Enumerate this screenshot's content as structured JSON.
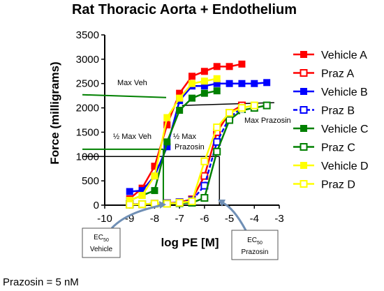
{
  "chart_data": {
    "type": "scatter",
    "title": "Rat Thoracic Aorta + Endothelium",
    "xlabel": "log PE [M]",
    "ylabel": "Force (milligrams)",
    "xlim": [
      -10,
      -3
    ],
    "ylim": [
      0,
      3500
    ],
    "xticks": [
      -10,
      -9,
      -8,
      -7,
      -6,
      -5,
      -4,
      -3
    ],
    "yticks": [
      0,
      500,
      1000,
      1500,
      2000,
      2500,
      3000,
      3500
    ],
    "legend_position": "right",
    "series": [
      {
        "name": "Vehicle A",
        "color": "#ff0000",
        "marker": "filled-square",
        "dash": "solid",
        "x": [
          -9,
          -8.5,
          -8,
          -7.5,
          -7,
          -6.5,
          -6,
          -5.5,
          -5,
          -4.5
        ],
        "y": [
          130,
          350,
          800,
          1650,
          2300,
          2650,
          2750,
          2850,
          2850,
          2900
        ]
      },
      {
        "name": "Praz A",
        "color": "#ff0000",
        "marker": "open-square",
        "dash": "solid",
        "x": [
          -9,
          -8.5,
          -8,
          -7.5,
          -7,
          -6.5,
          -6,
          -5.5,
          -5,
          -4.5
        ],
        "y": [
          20,
          20,
          30,
          40,
          60,
          120,
          600,
          1500,
          1900,
          2050
        ]
      },
      {
        "name": "Vehicle B",
        "color": "#0000ff",
        "marker": "filled-square",
        "dash": "solid",
        "x": [
          -9,
          -8.5,
          -8,
          -7.5,
          -7,
          -6.5,
          -6,
          -5.5,
          -5,
          -4.5,
          -4,
          -3.5
        ],
        "y": [
          280,
          300,
          600,
          1200,
          2150,
          2450,
          2450,
          2500,
          2500,
          2500,
          2500,
          2520
        ]
      },
      {
        "name": "Praz B",
        "color": "#0000ff",
        "marker": "open-square",
        "dash": "dashed",
        "x": [
          -9,
          -8.5,
          -8,
          -7.5,
          -7,
          -6.5,
          -6,
          -5.5,
          -5,
          -4.5
        ],
        "y": [
          20,
          20,
          30,
          40,
          60,
          100,
          400,
          1300,
          1800,
          2000
        ]
      },
      {
        "name": "Vehicle C",
        "color": "#008000",
        "marker": "filled-square",
        "dash": "solid",
        "x": [
          -9,
          -8.5,
          -8,
          -7.5,
          -7,
          -6.5,
          -6,
          -5.5
        ],
        "y": [
          100,
          200,
          300,
          1300,
          1950,
          2200,
          2300,
          2350
        ]
      },
      {
        "name": "Praz C",
        "color": "#008000",
        "marker": "open-square",
        "dash": "solid",
        "x": [
          -9,
          -8.5,
          -8,
          -7.5,
          -7,
          -6.5,
          -6,
          -5.5,
          -5,
          -4.5,
          -4,
          -3.5
        ],
        "y": [
          10,
          20,
          30,
          30,
          40,
          50,
          150,
          1100,
          1750,
          1950,
          2000,
          2050
        ]
      },
      {
        "name": "Vehicle D",
        "color": "#ffff00",
        "marker": "filled-square",
        "dash": "solid",
        "x": [
          -9,
          -8.5,
          -8,
          -7.5,
          -7,
          -6.5,
          -6,
          -5.5
        ],
        "y": [
          100,
          200,
          600,
          1800,
          2200,
          2500,
          2550,
          2600
        ]
      },
      {
        "name": "Praz D",
        "color": "#ffff00",
        "marker": "open-square",
        "dash": "solid",
        "x": [
          -9,
          -8.5,
          -8,
          -7.5,
          -7,
          -6.5,
          -6,
          -5.5,
          -5,
          -4.5,
          -4
        ],
        "y": [
          10,
          20,
          30,
          30,
          50,
          80,
          900,
          1600,
          1900,
          2000,
          2050
        ]
      }
    ],
    "annotations": {
      "max_veh": {
        "text": "Max Veh",
        "y": 2270
      },
      "half_max_veh": {
        "text": "½ Max Veh",
        "y": 1150,
        "x": -7.65
      },
      "half_max_prazosin": {
        "line1": "½ Max",
        "line2": "Prazosin",
        "y": 1000,
        "x": -5.4
      },
      "max_prazosin": {
        "text": "Max Prazosin",
        "y": 2050
      },
      "ec50_vehicle": {
        "main": "EC",
        "sub": "50",
        "line2": "Vehicle"
      },
      "ec50_prazosin": {
        "main": "EC",
        "sub": "50",
        "line2": "Prazosin"
      }
    }
  },
  "footnote": "Prazosin = 5 nM"
}
